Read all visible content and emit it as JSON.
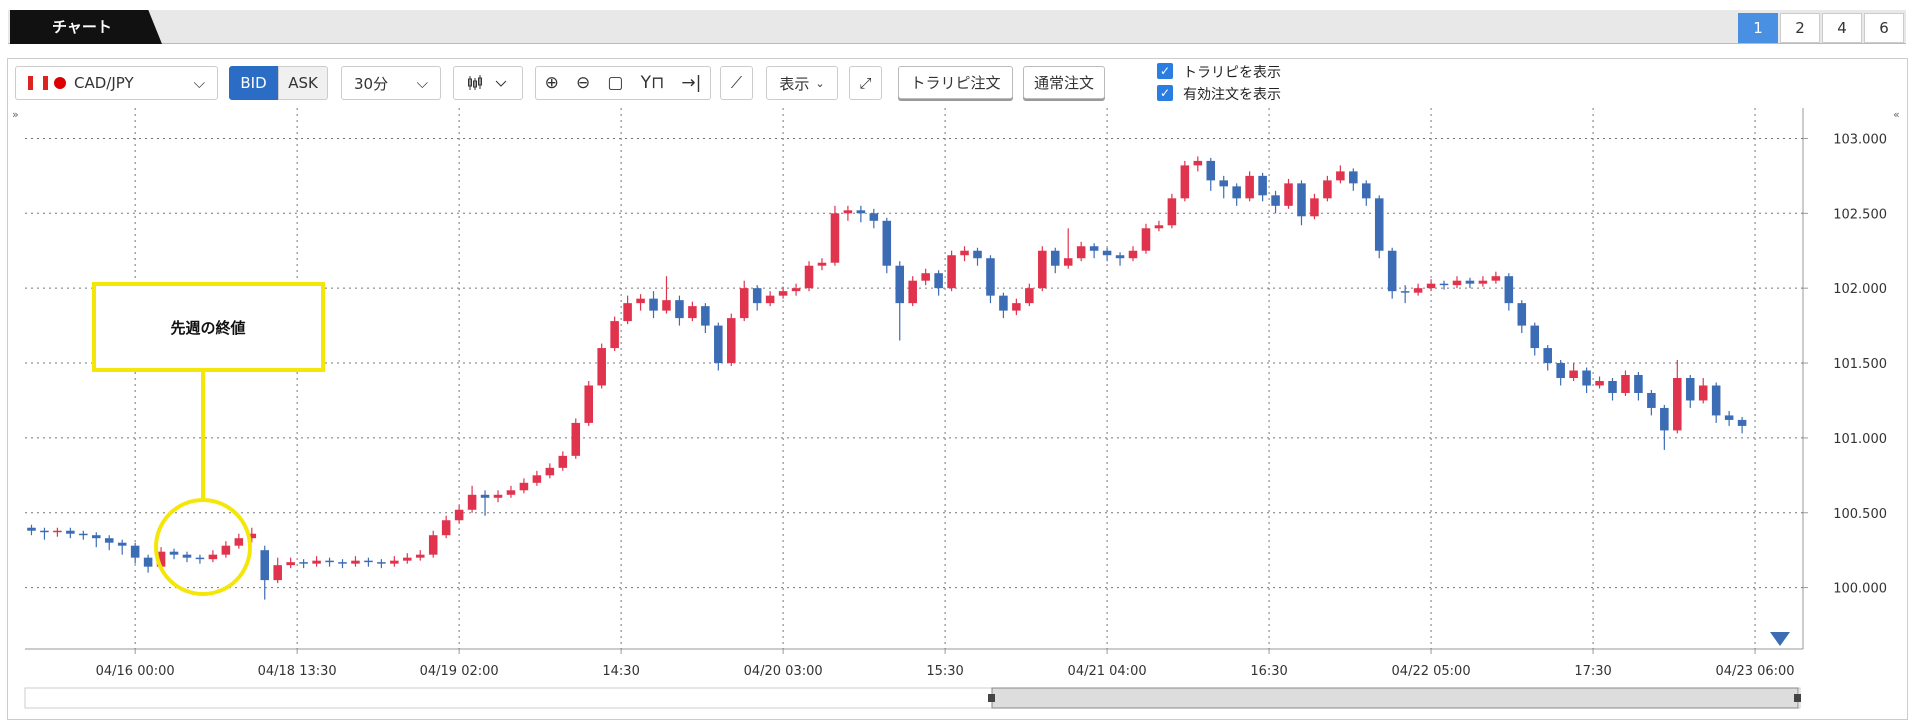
{
  "tab": "チャート",
  "pages": [
    "1",
    "2",
    "4",
    "6"
  ],
  "toolbar": {
    "symbol": "CAD/JPY",
    "bid": "BID",
    "ask": "ASK",
    "interval": "30分",
    "display": "表示",
    "trap_order": "トラリピ注文",
    "normal_order": "通常注文",
    "show_trap": "トラリピを表示",
    "show_orders": "有効注文を表示"
  },
  "annotation": "先週の終値",
  "chart_data": {
    "type": "candlestick",
    "up_color": "#e0344e",
    "down_color": "#3c6cb4",
    "grid": true,
    "ylim": [
      99.59,
      103.19
    ],
    "yticks": [
      {
        "value": 100.0,
        "label": "100.000"
      },
      {
        "value": 100.5,
        "label": "100.500"
      },
      {
        "value": 101.0,
        "label": "101.000"
      },
      {
        "value": 101.5,
        "label": "101.500"
      },
      {
        "value": 102.0,
        "label": "102.000"
      },
      {
        "value": 102.5,
        "label": "102.500"
      },
      {
        "value": 103.0,
        "label": "103.000"
      }
    ],
    "xlim": [
      -0.5,
      136.7
    ],
    "xticks": [
      {
        "value": 8,
        "label": "04/16 00:00"
      },
      {
        "value": 20.5,
        "label": "04/18 13:30"
      },
      {
        "value": 33,
        "label": "04/19 02:00"
      },
      {
        "value": 45.5,
        "label": "14:30"
      },
      {
        "value": 58,
        "label": "04/20 03:00"
      },
      {
        "value": 70.5,
        "label": "15:30"
      },
      {
        "value": 83,
        "label": "04/21 04:00"
      },
      {
        "value": 95.5,
        "label": "16:30"
      },
      {
        "value": 108,
        "label": "04/22 05:00"
      },
      {
        "value": 120.5,
        "label": "17:30"
      },
      {
        "value": 133,
        "label": "04/23 06:00"
      }
    ],
    "ohlc": [
      [
        100.4,
        100.42,
        100.35,
        100.38
      ],
      [
        100.38,
        100.4,
        100.32,
        100.37
      ],
      [
        100.37,
        100.4,
        100.34,
        100.38
      ],
      [
        100.38,
        100.4,
        100.33,
        100.36
      ],
      [
        100.36,
        100.38,
        100.32,
        100.35
      ],
      [
        100.35,
        100.37,
        100.27,
        100.33
      ],
      [
        100.33,
        100.35,
        100.25,
        100.3
      ],
      [
        100.3,
        100.32,
        100.22,
        100.28
      ],
      [
        100.28,
        100.3,
        100.16,
        100.2
      ],
      [
        100.2,
        100.22,
        100.1,
        100.14
      ],
      [
        100.14,
        100.27,
        100.12,
        100.24
      ],
      [
        100.24,
        100.26,
        100.19,
        100.22
      ],
      [
        100.22,
        100.24,
        100.17,
        100.2
      ],
      [
        100.2,
        100.22,
        100.16,
        100.19
      ],
      [
        100.19,
        100.25,
        100.17,
        100.22
      ],
      [
        100.22,
        100.31,
        100.2,
        100.28
      ],
      [
        100.28,
        100.36,
        100.26,
        100.33
      ],
      [
        100.33,
        100.4,
        100.3,
        100.36
      ],
      [
        100.25,
        100.28,
        99.92,
        100.05
      ],
      [
        100.05,
        100.2,
        100.03,
        100.15
      ],
      [
        100.15,
        100.2,
        100.13,
        100.17
      ],
      [
        100.17,
        100.19,
        100.13,
        100.16
      ],
      [
        100.16,
        100.21,
        100.14,
        100.18
      ],
      [
        100.18,
        100.2,
        100.14,
        100.17
      ],
      [
        100.17,
        100.19,
        100.13,
        100.16
      ],
      [
        100.16,
        100.21,
        100.14,
        100.18
      ],
      [
        100.18,
        100.2,
        100.14,
        100.17
      ],
      [
        100.17,
        100.19,
        100.13,
        100.16
      ],
      [
        100.16,
        100.21,
        100.14,
        100.18
      ],
      [
        100.18,
        100.23,
        100.16,
        100.2
      ],
      [
        100.2,
        100.25,
        100.18,
        100.22
      ],
      [
        100.22,
        100.38,
        100.2,
        100.35
      ],
      [
        100.35,
        100.48,
        100.33,
        100.45
      ],
      [
        100.45,
        100.55,
        100.43,
        100.52
      ],
      [
        100.52,
        100.68,
        100.5,
        100.62
      ],
      [
        100.62,
        100.65,
        100.48,
        100.6
      ],
      [
        100.6,
        100.65,
        100.57,
        100.62
      ],
      [
        100.62,
        100.68,
        100.6,
        100.65
      ],
      [
        100.65,
        100.73,
        100.63,
        100.7
      ],
      [
        100.7,
        100.78,
        100.68,
        100.75
      ],
      [
        100.75,
        100.83,
        100.73,
        100.8
      ],
      [
        100.8,
        100.91,
        100.78,
        100.88
      ],
      [
        100.88,
        101.13,
        100.86,
        101.1
      ],
      [
        101.1,
        101.38,
        101.08,
        101.35
      ],
      [
        101.35,
        101.63,
        101.33,
        101.6
      ],
      [
        101.6,
        101.81,
        101.58,
        101.78
      ],
      [
        101.78,
        101.95,
        101.76,
        101.9
      ],
      [
        101.9,
        101.96,
        101.85,
        101.93
      ],
      [
        101.93,
        101.98,
        101.8,
        101.85
      ],
      [
        101.85,
        102.08,
        101.83,
        101.92
      ],
      [
        101.92,
        101.95,
        101.75,
        101.8
      ],
      [
        101.8,
        101.91,
        101.78,
        101.88
      ],
      [
        101.88,
        101.9,
        101.7,
        101.75
      ],
      [
        101.75,
        101.77,
        101.45,
        101.5
      ],
      [
        101.5,
        101.83,
        101.48,
        101.8
      ],
      [
        101.8,
        102.05,
        101.78,
        102.0
      ],
      [
        102.0,
        102.02,
        101.85,
        101.9
      ],
      [
        101.9,
        101.98,
        101.88,
        101.95
      ],
      [
        101.95,
        102.01,
        101.93,
        101.98
      ],
      [
        101.98,
        102.03,
        101.95,
        102.0
      ],
      [
        102.0,
        102.18,
        101.98,
        102.15
      ],
      [
        102.15,
        102.2,
        102.12,
        102.17
      ],
      [
        102.17,
        102.55,
        102.15,
        102.5
      ],
      [
        102.5,
        102.55,
        102.45,
        102.52
      ],
      [
        102.52,
        102.55,
        102.44,
        102.5
      ],
      [
        102.5,
        102.53,
        102.4,
        102.45
      ],
      [
        102.45,
        102.47,
        102.1,
        102.15
      ],
      [
        102.15,
        102.18,
        101.65,
        101.9
      ],
      [
        101.9,
        102.08,
        101.88,
        102.05
      ],
      [
        102.05,
        102.13,
        102.02,
        102.1
      ],
      [
        102.1,
        102.12,
        101.95,
        102.0
      ],
      [
        102.0,
        102.25,
        101.98,
        102.22
      ],
      [
        102.22,
        102.28,
        102.18,
        102.25
      ],
      [
        102.25,
        102.27,
        102.15,
        102.2
      ],
      [
        102.2,
        102.22,
        101.9,
        101.95
      ],
      [
        101.95,
        101.97,
        101.8,
        101.85
      ],
      [
        101.85,
        101.93,
        101.82,
        101.9
      ],
      [
        101.9,
        102.03,
        101.88,
        102.0
      ],
      [
        102.0,
        102.28,
        101.98,
        102.25
      ],
      [
        102.25,
        102.27,
        102.1,
        102.15
      ],
      [
        102.15,
        102.4,
        102.13,
        102.2
      ],
      [
        102.2,
        102.31,
        102.18,
        102.28
      ],
      [
        102.28,
        102.3,
        102.2,
        102.25
      ],
      [
        102.25,
        102.27,
        102.18,
        102.22
      ],
      [
        102.22,
        102.24,
        102.15,
        102.2
      ],
      [
        102.2,
        102.28,
        102.18,
        102.25
      ],
      [
        102.25,
        102.43,
        102.23,
        102.4
      ],
      [
        102.4,
        102.45,
        102.38,
        102.42
      ],
      [
        102.42,
        102.63,
        102.4,
        102.6
      ],
      [
        102.6,
        102.85,
        102.58,
        102.82
      ],
      [
        102.82,
        102.88,
        102.78,
        102.85
      ],
      [
        102.85,
        102.87,
        102.65,
        102.72
      ],
      [
        102.72,
        102.75,
        102.6,
        102.68
      ],
      [
        102.68,
        102.7,
        102.55,
        102.6
      ],
      [
        102.6,
        102.78,
        102.58,
        102.75
      ],
      [
        102.75,
        102.77,
        102.58,
        102.62
      ],
      [
        102.62,
        102.65,
        102.5,
        102.55
      ],
      [
        102.55,
        102.73,
        102.53,
        102.7
      ],
      [
        102.7,
        102.72,
        102.42,
        102.48
      ],
      [
        102.48,
        102.63,
        102.46,
        102.6
      ],
      [
        102.6,
        102.75,
        102.58,
        102.72
      ],
      [
        102.72,
        102.82,
        102.7,
        102.78
      ],
      [
        102.78,
        102.8,
        102.65,
        102.7
      ],
      [
        102.7,
        102.72,
        102.55,
        102.6
      ],
      [
        102.6,
        102.62,
        102.2,
        102.25
      ],
      [
        102.25,
        102.27,
        101.93,
        101.98
      ],
      [
        101.98,
        102.02,
        101.9,
        101.97
      ],
      [
        101.97,
        102.03,
        101.95,
        102.0
      ],
      [
        102.0,
        102.06,
        101.98,
        102.03
      ],
      [
        102.03,
        102.05,
        101.99,
        102.02
      ],
      [
        102.02,
        102.08,
        102.0,
        102.05
      ],
      [
        102.05,
        102.07,
        102.0,
        102.03
      ],
      [
        102.03,
        102.08,
        102.01,
        102.05
      ],
      [
        102.05,
        102.11,
        102.03,
        102.08
      ],
      [
        102.08,
        102.1,
        101.85,
        101.9
      ],
      [
        101.9,
        101.92,
        101.7,
        101.75
      ],
      [
        101.75,
        101.77,
        101.55,
        101.6
      ],
      [
        101.6,
        101.62,
        101.45,
        101.5
      ],
      [
        101.5,
        101.52,
        101.35,
        101.4
      ],
      [
        101.4,
        101.5,
        101.38,
        101.45
      ],
      [
        101.45,
        101.47,
        101.3,
        101.35
      ],
      [
        101.35,
        101.41,
        101.33,
        101.38
      ],
      [
        101.38,
        101.4,
        101.25,
        101.3
      ],
      [
        101.3,
        101.45,
        101.28,
        101.42
      ],
      [
        101.42,
        101.44,
        101.25,
        101.3
      ],
      [
        101.3,
        101.32,
        101.15,
        101.2
      ],
      [
        101.2,
        101.22,
        100.92,
        101.05
      ],
      [
        101.05,
        101.52,
        101.03,
        101.4
      ],
      [
        101.4,
        101.42,
        101.2,
        101.25
      ],
      [
        101.25,
        101.4,
        101.23,
        101.35
      ],
      [
        101.35,
        101.37,
        101.1,
        101.15
      ],
      [
        101.15,
        101.18,
        101.08,
        101.12
      ],
      [
        101.12,
        101.14,
        101.03,
        101.08
      ]
    ]
  }
}
